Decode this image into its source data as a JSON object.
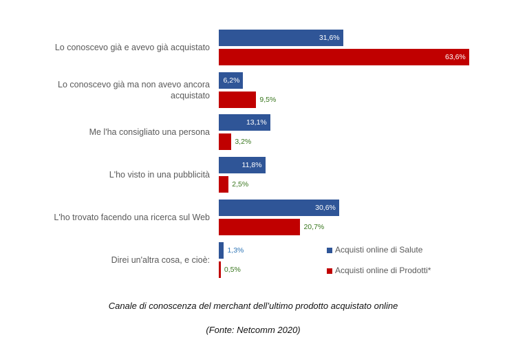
{
  "chart_data": {
    "type": "bar",
    "orientation": "horizontal",
    "title": "Canale di conoscenza del merchant dell’ultimo prodotto acquistato online",
    "subtitle": "(Fonte: Netcomm 2020)",
    "categories": [
      "Lo conoscevo già e avevo già acquistato",
      "Lo conoscevo già ma non avevo ancora acquistato",
      "Me l'ha consigliato una persona",
      "L'ho visto in una pubblicità",
      "L'ho trovato facendo una ricerca sul Web",
      "Direi un'altra cosa, e cioè:"
    ],
    "series": [
      {
        "name": "Acquisti online di Salute",
        "color": "#2f5597",
        "values": [
          31.6,
          6.2,
          13.1,
          11.8,
          30.6,
          1.3
        ],
        "value_labels": [
          "31,6%",
          "6,2%",
          "13,1%",
          "11,8%",
          "30,6%",
          "1,3%"
        ]
      },
      {
        "name": "Acquisti online di Prodotti*",
        "color": "#c00000",
        "values": [
          63.6,
          9.5,
          3.2,
          2.5,
          20.7,
          0.5
        ],
        "value_labels": [
          "63,6%",
          "9,5%",
          "3,2%",
          "2,5%",
          "20,7%",
          "0,5%"
        ]
      }
    ],
    "legend": "bottom-right"
  }
}
